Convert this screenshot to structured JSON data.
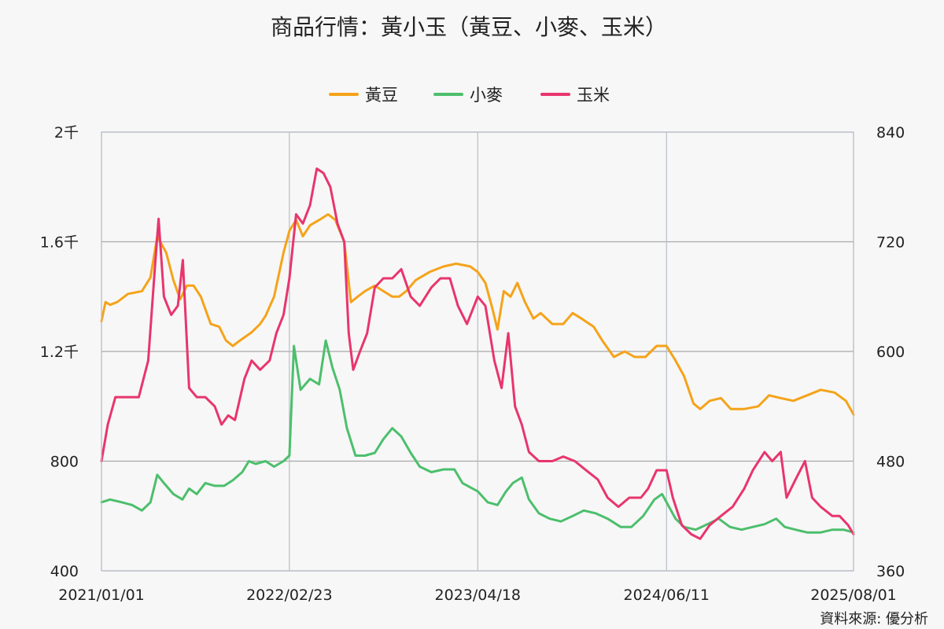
{
  "chart_data": {
    "type": "line",
    "title": "商品行情：黃小玉（黃豆、小麥、玉米）",
    "source": "資料來源: 優分析",
    "x_ticks": [
      "2021/01/01",
      "2022/02/23",
      "2023/04/18",
      "2024/06/11",
      "2025/08/01"
    ],
    "x_range": [
      "2021/01/01",
      "2025/08/01"
    ],
    "y_left": {
      "range": [
        400,
        2000
      ],
      "ticks": [
        400,
        800,
        1200,
        1600,
        2000
      ],
      "tick_labels": [
        "400",
        "800",
        "1.2千",
        "1.6千",
        "2千"
      ]
    },
    "y_right": {
      "range": [
        360,
        840
      ],
      "ticks": [
        360,
        480,
        600,
        720,
        840
      ],
      "tick_labels": [
        "360",
        "480",
        "600",
        "720",
        "840"
      ]
    },
    "grid": {
      "horizontal": true,
      "vertical": true
    },
    "legend_position": "top-center",
    "series": [
      {
        "name": "黃豆",
        "axis": "left",
        "color": "#f5a31a",
        "points": [
          [
            "2021/01/01",
            1310
          ],
          [
            "2021/01/10",
            1380
          ],
          [
            "2021/01/20",
            1370
          ],
          [
            "2021/02/05",
            1380
          ],
          [
            "2021/03/01",
            1410
          ],
          [
            "2021/04/01",
            1420
          ],
          [
            "2021/04/20",
            1470
          ],
          [
            "2021/05/05",
            1620
          ],
          [
            "2021/05/25",
            1560
          ],
          [
            "2021/06/10",
            1460
          ],
          [
            "2021/06/25",
            1390
          ],
          [
            "2021/07/10",
            1440
          ],
          [
            "2021/07/25",
            1440
          ],
          [
            "2021/08/10",
            1400
          ],
          [
            "2021/09/01",
            1300
          ],
          [
            "2021/09/20",
            1290
          ],
          [
            "2021/10/05",
            1240
          ],
          [
            "2021/10/20",
            1220
          ],
          [
            "2021/11/05",
            1240
          ],
          [
            "2021/12/01",
            1270
          ],
          [
            "2021/12/20",
            1300
          ],
          [
            "2022/01/01",
            1330
          ],
          [
            "2022/01/20",
            1400
          ],
          [
            "2022/02/10",
            1560
          ],
          [
            "2022/02/23",
            1640
          ],
          [
            "2022/03/10",
            1680
          ],
          [
            "2022/03/25",
            1620
          ],
          [
            "2022/04/10",
            1660
          ],
          [
            "2022/05/01",
            1680
          ],
          [
            "2022/05/20",
            1700
          ],
          [
            "2022/06/05",
            1680
          ],
          [
            "2022/06/25",
            1600
          ],
          [
            "2022/07/10",
            1380
          ],
          [
            "2022/07/25",
            1400
          ],
          [
            "2022/08/10",
            1420
          ],
          [
            "2022/09/01",
            1440
          ],
          [
            "2022/09/20",
            1420
          ],
          [
            "2022/10/10",
            1400
          ],
          [
            "2022/10/25",
            1400
          ],
          [
            "2022/11/10",
            1420
          ],
          [
            "2022/12/01",
            1460
          ],
          [
            "2023/01/01",
            1490
          ],
          [
            "2023/02/01",
            1510
          ],
          [
            "2023/03/01",
            1520
          ],
          [
            "2023/04/01",
            1510
          ],
          [
            "2023/04/18",
            1490
          ],
          [
            "2023/05/05",
            1450
          ],
          [
            "2023/05/20",
            1360
          ],
          [
            "2023/06/01",
            1280
          ],
          [
            "2023/06/15",
            1420
          ],
          [
            "2023/06/30",
            1400
          ],
          [
            "2023/07/15",
            1450
          ],
          [
            "2023/08/01",
            1380
          ],
          [
            "2023/08/20",
            1320
          ],
          [
            "2023/09/05",
            1340
          ],
          [
            "2023/10/01",
            1300
          ],
          [
            "2023/10/25",
            1300
          ],
          [
            "2023/11/15",
            1340
          ],
          [
            "2023/12/05",
            1320
          ],
          [
            "2024/01/01",
            1290
          ],
          [
            "2024/01/20",
            1240
          ],
          [
            "2024/02/15",
            1180
          ],
          [
            "2024/03/10",
            1200
          ],
          [
            "2024/04/01",
            1180
          ],
          [
            "2024/04/25",
            1180
          ],
          [
            "2024/05/20",
            1220
          ],
          [
            "2024/06/11",
            1220
          ],
          [
            "2024/06/30",
            1170
          ],
          [
            "2024/07/20",
            1110
          ],
          [
            "2024/08/10",
            1010
          ],
          [
            "2024/08/25",
            990
          ],
          [
            "2024/09/15",
            1020
          ],
          [
            "2024/10/10",
            1030
          ],
          [
            "2024/11/01",
            990
          ],
          [
            "2024/12/01",
            990
          ],
          [
            "2025/01/01",
            1000
          ],
          [
            "2025/01/25",
            1040
          ],
          [
            "2025/02/20",
            1030
          ],
          [
            "2025/03/20",
            1020
          ],
          [
            "2025/04/20",
            1040
          ],
          [
            "2025/05/20",
            1060
          ],
          [
            "2025/06/20",
            1050
          ],
          [
            "2025/07/15",
            1020
          ],
          [
            "2025/08/01",
            970
          ]
        ]
      },
      {
        "name": "小麥",
        "axis": "left",
        "color": "#4cbf6c",
        "points": [
          [
            "2021/01/01",
            650
          ],
          [
            "2021/01/20",
            660
          ],
          [
            "2021/02/15",
            650
          ],
          [
            "2021/03/10",
            640
          ],
          [
            "2021/04/01",
            620
          ],
          [
            "2021/04/20",
            650
          ],
          [
            "2021/05/05",
            750
          ],
          [
            "2021/05/20",
            720
          ],
          [
            "2021/06/10",
            680
          ],
          [
            "2021/06/30",
            660
          ],
          [
            "2021/07/15",
            700
          ],
          [
            "2021/08/01",
            680
          ],
          [
            "2021/08/20",
            720
          ],
          [
            "2021/09/10",
            710
          ],
          [
            "2021/10/01",
            710
          ],
          [
            "2021/10/20",
            730
          ],
          [
            "2021/11/10",
            760
          ],
          [
            "2021/11/25",
            800
          ],
          [
            "2021/12/10",
            790
          ],
          [
            "2022/01/01",
            800
          ],
          [
            "2022/01/20",
            780
          ],
          [
            "2022/02/10",
            800
          ],
          [
            "2022/02/23",
            820
          ],
          [
            "2022/03/05",
            1220
          ],
          [
            "2022/03/20",
            1060
          ],
          [
            "2022/04/10",
            1100
          ],
          [
            "2022/04/30",
            1080
          ],
          [
            "2022/05/15",
            1240
          ],
          [
            "2022/05/30",
            1140
          ],
          [
            "2022/06/15",
            1060
          ],
          [
            "2022/07/01",
            920
          ],
          [
            "2022/07/20",
            820
          ],
          [
            "2022/08/10",
            820
          ],
          [
            "2022/09/01",
            830
          ],
          [
            "2022/09/20",
            880
          ],
          [
            "2022/10/10",
            920
          ],
          [
            "2022/10/30",
            890
          ],
          [
            "2022/11/20",
            830
          ],
          [
            "2022/12/10",
            780
          ],
          [
            "2023/01/05",
            760
          ],
          [
            "2023/02/01",
            770
          ],
          [
            "2023/02/25",
            770
          ],
          [
            "2023/03/15",
            720
          ],
          [
            "2023/04/18",
            690
          ],
          [
            "2023/05/10",
            650
          ],
          [
            "2023/06/01",
            640
          ],
          [
            "2023/06/20",
            690
          ],
          [
            "2023/07/05",
            720
          ],
          [
            "2023/07/25",
            740
          ],
          [
            "2023/08/10",
            660
          ],
          [
            "2023/09/01",
            610
          ],
          [
            "2023/09/25",
            590
          ],
          [
            "2023/10/20",
            580
          ],
          [
            "2023/11/15",
            600
          ],
          [
            "2023/12/10",
            620
          ],
          [
            "2024/01/05",
            610
          ],
          [
            "2024/02/01",
            590
          ],
          [
            "2024/03/01",
            560
          ],
          [
            "2024/03/25",
            560
          ],
          [
            "2024/04/20",
            600
          ],
          [
            "2024/05/15",
            660
          ],
          [
            "2024/06/01",
            680
          ],
          [
            "2024/06/11",
            650
          ],
          [
            "2024/07/01",
            590
          ],
          [
            "2024/07/20",
            560
          ],
          [
            "2024/08/15",
            550
          ],
          [
            "2024/09/10",
            570
          ],
          [
            "2024/10/05",
            590
          ],
          [
            "2024/10/30",
            560
          ],
          [
            "2024/11/25",
            550
          ],
          [
            "2024/12/20",
            560
          ],
          [
            "2025/01/15",
            570
          ],
          [
            "2025/02/10",
            590
          ],
          [
            "2025/03/01",
            560
          ],
          [
            "2025/03/25",
            550
          ],
          [
            "2025/04/20",
            540
          ],
          [
            "2025/05/20",
            540
          ],
          [
            "2025/06/15",
            550
          ],
          [
            "2025/07/10",
            550
          ],
          [
            "2025/08/01",
            540
          ]
        ]
      },
      {
        "name": "玉米",
        "axis": "right",
        "color": "#e8356d",
        "points": [
          [
            "2021/01/01",
            480
          ],
          [
            "2021/01/15",
            520
          ],
          [
            "2021/02/01",
            550
          ],
          [
            "2021/03/01",
            550
          ],
          [
            "2021/03/25",
            550
          ],
          [
            "2021/04/15",
            590
          ],
          [
            "2021/05/01",
            700
          ],
          [
            "2021/05/08",
            745
          ],
          [
            "2021/05/20",
            660
          ],
          [
            "2021/06/05",
            640
          ],
          [
            "2021/06/20",
            650
          ],
          [
            "2021/07/01",
            700
          ],
          [
            "2021/07/15",
            560
          ],
          [
            "2021/08/01",
            550
          ],
          [
            "2021/08/20",
            550
          ],
          [
            "2021/09/10",
            540
          ],
          [
            "2021/09/25",
            520
          ],
          [
            "2021/10/10",
            530
          ],
          [
            "2021/10/25",
            525
          ],
          [
            "2021/11/15",
            570
          ],
          [
            "2021/12/01",
            590
          ],
          [
            "2021/12/20",
            580
          ],
          [
            "2022/01/10",
            590
          ],
          [
            "2022/01/25",
            620
          ],
          [
            "2022/02/10",
            640
          ],
          [
            "2022/02/23",
            680
          ],
          [
            "2022/03/10",
            750
          ],
          [
            "2022/03/25",
            740
          ],
          [
            "2022/04/10",
            760
          ],
          [
            "2022/04/25",
            800
          ],
          [
            "2022/05/10",
            795
          ],
          [
            "2022/05/25",
            780
          ],
          [
            "2022/06/10",
            740
          ],
          [
            "2022/06/25",
            720
          ],
          [
            "2022/07/05",
            620
          ],
          [
            "2022/07/15",
            580
          ],
          [
            "2022/07/30",
            600
          ],
          [
            "2022/08/15",
            620
          ],
          [
            "2022/09/01",
            670
          ],
          [
            "2022/09/20",
            680
          ],
          [
            "2022/10/10",
            680
          ],
          [
            "2022/10/30",
            690
          ],
          [
            "2022/11/20",
            660
          ],
          [
            "2022/12/10",
            650
          ],
          [
            "2023/01/05",
            670
          ],
          [
            "2023/01/25",
            680
          ],
          [
            "2023/02/15",
            680
          ],
          [
            "2023/03/05",
            650
          ],
          [
            "2023/03/25",
            630
          ],
          [
            "2023/04/18",
            660
          ],
          [
            "2023/05/05",
            650
          ],
          [
            "2023/05/25",
            590
          ],
          [
            "2023/06/10",
            560
          ],
          [
            "2023/06/25",
            620
          ],
          [
            "2023/07/10",
            540
          ],
          [
            "2023/07/25",
            520
          ],
          [
            "2023/08/10",
            490
          ],
          [
            "2023/09/01",
            480
          ],
          [
            "2023/10/01",
            480
          ],
          [
            "2023/10/25",
            485
          ],
          [
            "2023/11/20",
            480
          ],
          [
            "2023/12/15",
            470
          ],
          [
            "2024/01/10",
            460
          ],
          [
            "2024/02/01",
            440
          ],
          [
            "2024/02/25",
            430
          ],
          [
            "2024/03/20",
            440
          ],
          [
            "2024/04/15",
            440
          ],
          [
            "2024/05/01",
            450
          ],
          [
            "2024/05/20",
            470
          ],
          [
            "2024/06/11",
            470
          ],
          [
            "2024/06/25",
            440
          ],
          [
            "2024/07/15",
            410
          ],
          [
            "2024/08/05",
            400
          ],
          [
            "2024/08/25",
            395
          ],
          [
            "2024/09/15",
            410
          ],
          [
            "2024/10/10",
            420
          ],
          [
            "2024/11/05",
            430
          ],
          [
            "2024/12/01",
            450
          ],
          [
            "2024/12/20",
            470
          ],
          [
            "2025/01/15",
            490
          ],
          [
            "2025/02/01",
            480
          ],
          [
            "2025/02/20",
            490
          ],
          [
            "2025/03/05",
            440
          ],
          [
            "2025/03/25",
            460
          ],
          [
            "2025/04/15",
            480
          ],
          [
            "2025/05/01",
            440
          ],
          [
            "2025/05/20",
            430
          ],
          [
            "2025/06/15",
            420
          ],
          [
            "2025/07/01",
            420
          ],
          [
            "2025/07/20",
            410
          ],
          [
            "2025/08/01",
            400
          ]
        ]
      }
    ]
  }
}
